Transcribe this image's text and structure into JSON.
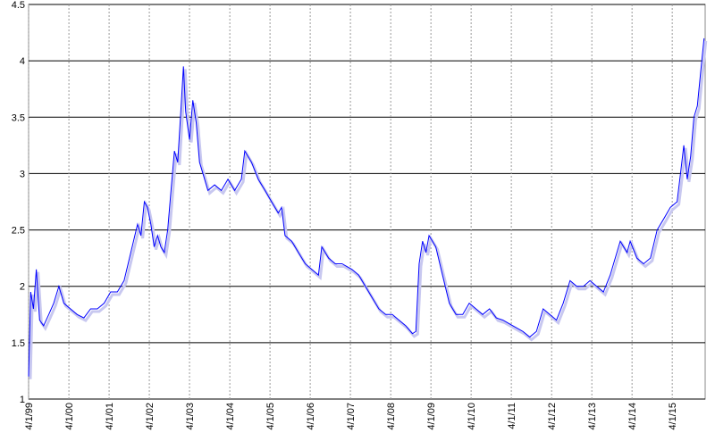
{
  "chart_data": {
    "type": "line",
    "color": "#0000ff",
    "grid": true,
    "x": [
      "1999-04-01",
      "1999-04-20",
      "1999-05-15",
      "1999-06-10",
      "1999-07-10",
      "1999-08-15",
      "1999-10-01",
      "1999-11-15",
      "2000-01-01",
      "2000-02-15",
      "2000-04-15",
      "2000-06-15",
      "2000-08-15",
      "2000-10-15",
      "2000-12-15",
      "2001-02-15",
      "2001-04-15",
      "2001-06-15",
      "2001-08-15",
      "2001-10-15",
      "2001-12-15",
      "2002-01-15",
      "2002-02-15",
      "2002-03-15",
      "2002-04-15",
      "2002-05-15",
      "2002-06-15",
      "2002-07-15",
      "2002-08-15",
      "2002-09-15",
      "2002-10-15",
      "2002-11-15",
      "2002-12-15",
      "2003-01-15",
      "2003-02-05",
      "2003-02-25",
      "2003-04-01",
      "2003-05-01",
      "2003-06-01",
      "2003-07-01",
      "2003-08-01",
      "2003-09-15",
      "2003-11-15",
      "2004-01-15",
      "2004-03-15",
      "2004-05-15",
      "2004-07-15",
      "2004-08-15",
      "2004-10-15",
      "2004-12-15",
      "2005-02-15",
      "2005-04-15",
      "2005-06-15",
      "2005-07-15",
      "2005-08-15",
      "2005-10-15",
      "2005-12-15",
      "2006-02-15",
      "2006-04-15",
      "2006-06-15",
      "2006-07-15",
      "2006-09-15",
      "2006-11-15",
      "2007-01-15",
      "2007-04-15",
      "2007-06-15",
      "2007-08-15",
      "2007-10-15",
      "2007-12-15",
      "2008-02-15",
      "2008-04-15",
      "2008-06-15",
      "2008-08-15",
      "2008-10-15",
      "2008-11-15",
      "2008-12-15",
      "2009-01-15",
      "2009-02-15",
      "2009-03-15",
      "2009-05-15",
      "2009-07-15",
      "2009-09-15",
      "2009-11-15",
      "2010-01-15",
      "2010-03-15",
      "2010-05-15",
      "2010-07-15",
      "2010-09-15",
      "2010-11-15",
      "2011-01-15",
      "2011-04-15",
      "2011-07-15",
      "2011-09-15",
      "2011-11-15",
      "2012-01-15",
      "2012-03-15",
      "2012-05-15",
      "2012-07-15",
      "2012-09-15",
      "2012-11-15",
      "2013-01-15",
      "2013-03-15",
      "2013-05-15",
      "2013-07-15",
      "2013-09-15",
      "2013-10-15",
      "2013-12-15",
      "2014-02-15",
      "2014-03-15",
      "2014-05-15",
      "2014-07-15",
      "2014-09-15",
      "2014-11-15",
      "2015-01-15",
      "2015-03-15",
      "2015-05-15",
      "2015-06-15",
      "2015-07-15",
      "2015-08-15",
      "2015-09-15",
      "2015-10-15",
      "2015-11-15",
      "2015-12-15",
      "2016-01-15"
    ],
    "values": [
      1.2,
      1.95,
      1.8,
      2.15,
      1.7,
      1.65,
      1.75,
      1.85,
      2.0,
      1.85,
      1.8,
      1.75,
      1.72,
      1.8,
      1.8,
      1.85,
      1.95,
      1.95,
      2.05,
      2.3,
      2.55,
      2.45,
      2.75,
      2.7,
      2.55,
      2.35,
      2.45,
      2.35,
      2.3,
      2.5,
      2.85,
      3.2,
      3.1,
      3.6,
      3.95,
      3.55,
      3.3,
      3.65,
      3.45,
      3.1,
      3.0,
      2.85,
      2.9,
      2.85,
      2.95,
      2.85,
      2.95,
      3.2,
      3.1,
      2.95,
      2.85,
      2.75,
      2.65,
      2.7,
      2.45,
      2.4,
      2.3,
      2.2,
      2.15,
      2.1,
      2.35,
      2.25,
      2.2,
      2.2,
      2.15,
      2.1,
      2.0,
      1.9,
      1.8,
      1.75,
      1.75,
      1.7,
      1.65,
      1.58,
      1.6,
      2.2,
      2.4,
      2.3,
      2.45,
      2.35,
      2.1,
      1.85,
      1.75,
      1.75,
      1.85,
      1.8,
      1.75,
      1.8,
      1.72,
      1.7,
      1.65,
      1.6,
      1.55,
      1.6,
      1.8,
      1.75,
      1.7,
      1.85,
      2.05,
      2.0,
      2.0,
      2.05,
      2.0,
      1.95,
      2.1,
      2.2,
      2.4,
      2.3,
      2.4,
      2.25,
      2.2,
      2.25,
      2.5,
      2.6,
      2.7,
      2.75,
      3.0,
      3.25,
      2.95,
      3.15,
      3.5,
      3.6,
      3.9,
      4.2
    ],
    "xlim": [
      "1999-04-01",
      "2016-01-25"
    ],
    "xticks": [
      {
        "value": "1999-04-01",
        "label": "4/1/99"
      },
      {
        "value": "2000-04-01",
        "label": "4/1/00"
      },
      {
        "value": "2001-04-01",
        "label": "4/1/01"
      },
      {
        "value": "2002-04-01",
        "label": "4/1/02"
      },
      {
        "value": "2003-04-01",
        "label": "4/1/03"
      },
      {
        "value": "2004-04-01",
        "label": "4/1/04"
      },
      {
        "value": "2005-04-01",
        "label": "4/1/05"
      },
      {
        "value": "2006-04-01",
        "label": "4/1/06"
      },
      {
        "value": "2007-04-01",
        "label": "4/1/07"
      },
      {
        "value": "2008-04-01",
        "label": "4/1/08"
      },
      {
        "value": "2009-04-01",
        "label": "4/1/09"
      },
      {
        "value": "2010-04-01",
        "label": "4/1/10"
      },
      {
        "value": "2011-04-01",
        "label": "4/1/11"
      },
      {
        "value": "2012-04-01",
        "label": "4/1/12"
      },
      {
        "value": "2013-04-01",
        "label": "4/1/13"
      },
      {
        "value": "2014-04-01",
        "label": "4/1/14"
      },
      {
        "value": "2015-04-01",
        "label": "4/1/15"
      }
    ],
    "ylim": [
      1,
      4.5
    ],
    "yticks": [
      1,
      1.5,
      2,
      2.5,
      3,
      3.5,
      4,
      4.5
    ]
  }
}
